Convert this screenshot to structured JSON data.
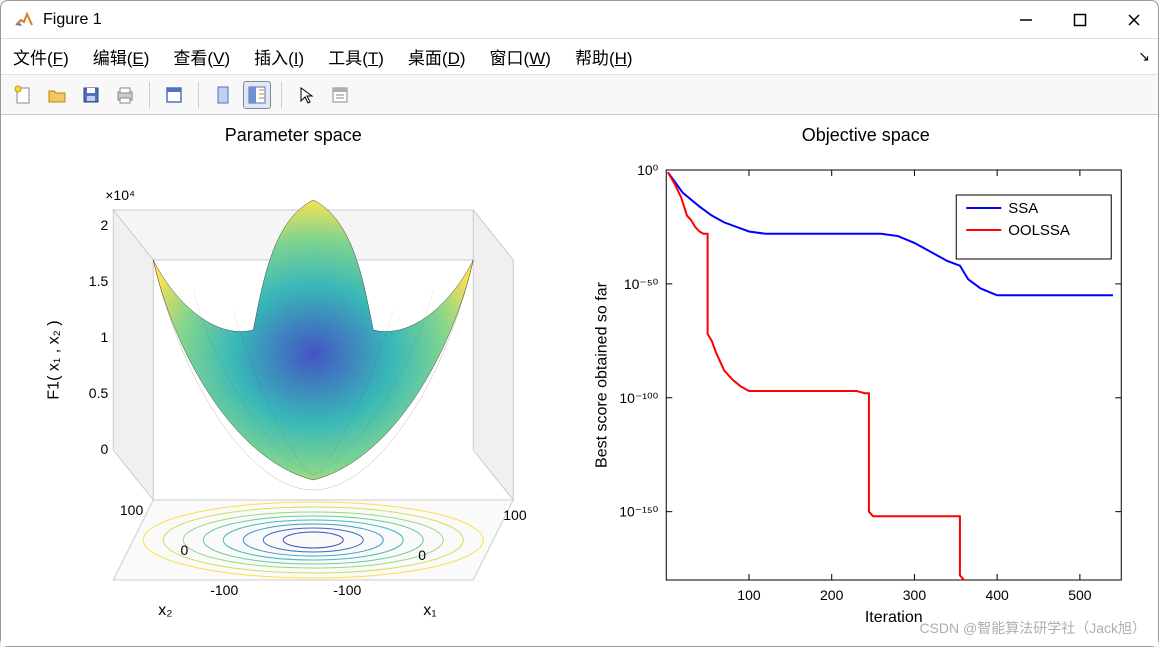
{
  "window": {
    "title": "Figure 1"
  },
  "menu": {
    "items": [
      {
        "label": "文件",
        "key": "F"
      },
      {
        "label": "编辑",
        "key": "E"
      },
      {
        "label": "查看",
        "key": "V"
      },
      {
        "label": "插入",
        "key": "I"
      },
      {
        "label": "工具",
        "key": "T"
      },
      {
        "label": "桌面",
        "key": "D"
      },
      {
        "label": "窗口",
        "key": "W"
      },
      {
        "label": "帮助",
        "key": "H"
      }
    ]
  },
  "toolbar": {
    "buttons": [
      "new",
      "open",
      "save",
      "print",
      "sep",
      "print-figure",
      "sep",
      "link",
      "layout",
      "sep",
      "cursor",
      "dock"
    ]
  },
  "left_chart": {
    "type": "surf3d",
    "title": "Parameter space",
    "zlabel": "F1( x₁ , x₂ )",
    "xlabel": "x₁",
    "ylabel": "x₂",
    "z_exponent_label": "×10⁴",
    "z_ticks": [
      0,
      0.5,
      1,
      1.5,
      2
    ],
    "x_ticks": [
      -100,
      0,
      100
    ],
    "y_ticks": [
      -100,
      0,
      100
    ],
    "x_range": [
      -100,
      100
    ],
    "y_range": [
      -100,
      100
    ],
    "colormap_low": "#3a4cc0",
    "colormap_mid_low": "#2fb5b5",
    "colormap_mid_high": "#7bd389",
    "colormap_high": "#f9e04c",
    "background": "#ffffff",
    "grid_color": "#cccccc",
    "title_fontsize": 18,
    "label_fontsize": 16,
    "tick_fontsize": 14
  },
  "right_chart": {
    "type": "line",
    "title": "Objective space",
    "xlabel": "Iteration",
    "ylabel": "Best score obtained so far",
    "yscale": "log",
    "xlim": [
      0,
      550
    ],
    "ylim_exp": [
      -180,
      0
    ],
    "xticks": [
      100,
      200,
      300,
      400,
      500
    ],
    "yticks_exp": [
      -150,
      -100,
      -50,
      0
    ],
    "ytick_labels": [
      "10⁻¹⁵⁰",
      "10⁻¹⁰⁰",
      "10⁻⁵⁰",
      "10⁰"
    ],
    "grid_color": "none",
    "border_color": "#000000",
    "background": "#ffffff",
    "title_fontsize": 18,
    "label_fontsize": 16,
    "tick_fontsize": 14,
    "line_width": 2,
    "legend": {
      "position": "top-right",
      "items": [
        {
          "label": "SSA",
          "color": "#0000ff"
        },
        {
          "label": "OOLSSA",
          "color": "#ff0000"
        }
      ],
      "border_color": "#000000",
      "background": "#ffffff",
      "fontsize": 15
    },
    "series": [
      {
        "name": "SSA",
        "color": "#0000ff",
        "points": [
          [
            2,
            -1
          ],
          [
            10,
            -5
          ],
          [
            20,
            -10
          ],
          [
            30,
            -13
          ],
          [
            40,
            -16
          ],
          [
            55,
            -20
          ],
          [
            70,
            -23
          ],
          [
            85,
            -25
          ],
          [
            100,
            -27
          ],
          [
            120,
            -28
          ],
          [
            150,
            -28
          ],
          [
            200,
            -28
          ],
          [
            240,
            -28
          ],
          [
            260,
            -28
          ],
          [
            280,
            -29
          ],
          [
            300,
            -32
          ],
          [
            320,
            -36
          ],
          [
            340,
            -40
          ],
          [
            355,
            -42
          ],
          [
            365,
            -48
          ],
          [
            380,
            -52
          ],
          [
            400,
            -55
          ],
          [
            420,
            -55
          ],
          [
            460,
            -55
          ],
          [
            500,
            -55
          ],
          [
            540,
            -55
          ]
        ]
      },
      {
        "name": "OOLSSA",
        "color": "#ff0000",
        "points": [
          [
            2,
            -1
          ],
          [
            10,
            -6
          ],
          [
            18,
            -12
          ],
          [
            25,
            -20
          ],
          [
            30,
            -22
          ],
          [
            35,
            -25
          ],
          [
            40,
            -27
          ],
          [
            45,
            -28
          ],
          [
            48,
            -28
          ],
          [
            50,
            -72
          ],
          [
            55,
            -75
          ],
          [
            60,
            -80
          ],
          [
            70,
            -88
          ],
          [
            80,
            -92
          ],
          [
            90,
            -95
          ],
          [
            100,
            -97
          ],
          [
            110,
            -97
          ],
          [
            130,
            -97
          ],
          [
            160,
            -97
          ],
          [
            200,
            -97
          ],
          [
            230,
            -97
          ],
          [
            240,
            -98
          ],
          [
            245,
            -150
          ],
          [
            250,
            -152
          ],
          [
            260,
            -152
          ],
          [
            290,
            -152
          ],
          [
            320,
            -152
          ],
          [
            350,
            -152
          ],
          [
            355,
            -178
          ],
          [
            360,
            -180
          ]
        ]
      }
    ]
  },
  "watermark": "CSDN @智能算法研学社（Jack旭）"
}
